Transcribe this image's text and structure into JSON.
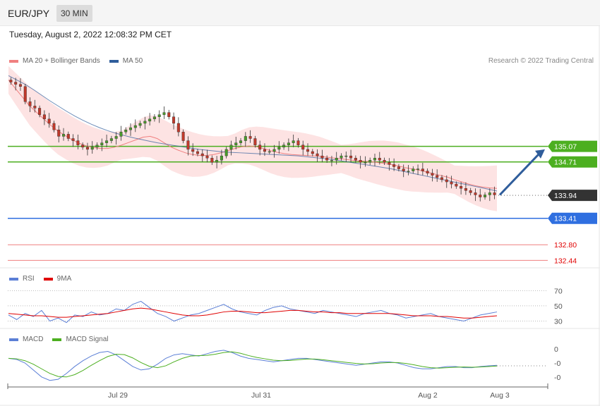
{
  "header": {
    "pair": "EUR/JPY",
    "timeframe": "30 MIN"
  },
  "datetime": "Tuesday, August 2, 2022 12:08:32 PM CET",
  "credit": "Research © 2022 Trading Central",
  "legends": {
    "price": [
      {
        "label": "MA 20 + Bollinger Bands",
        "color": "#f08080"
      },
      {
        "label": "MA 50",
        "color": "#2f5d9b"
      }
    ],
    "rsi": [
      {
        "label": "RSI",
        "color": "#5b7fd6"
      },
      {
        "label": "9MA",
        "color": "#e00000"
      }
    ],
    "macd": [
      {
        "label": "MACD",
        "color": "#5b7fd6"
      },
      {
        "label": "MACD Signal",
        "color": "#4caf20"
      }
    ]
  },
  "colors": {
    "up": "#4a9a2a",
    "down": "#c0392b",
    "resistance": "#4caf20",
    "support": "#2f6fe0",
    "support2": "#e00000",
    "current": "#333333",
    "arrow": "#2f5d9b"
  },
  "chart_data": [
    {
      "type": "candlestick",
      "name": "price",
      "ylim": [
        132.3,
        136.9
      ],
      "x_ticks": [
        "Jul 29",
        "Jul 31",
        "Aug 2",
        "Aug 3"
      ],
      "levels": [
        {
          "label": "135.07",
          "value": 135.07,
          "kind": "resistance"
        },
        {
          "label": "134.71",
          "value": 134.71,
          "kind": "resistance"
        },
        {
          "label": "133.94",
          "value": 133.94,
          "kind": "current"
        },
        {
          "label": "133.41",
          "value": 133.41,
          "kind": "support"
        },
        {
          "label": "132.80",
          "value": 132.8,
          "kind": "support2"
        },
        {
          "label": "132.44",
          "value": 132.44,
          "kind": "support2"
        }
      ],
      "close": [
        136.55,
        136.5,
        136.45,
        136.1,
        136.0,
        135.95,
        135.8,
        135.7,
        135.6,
        135.45,
        135.3,
        135.35,
        135.25,
        135.2,
        135.1,
        135.05,
        135.0,
        135.05,
        135.1,
        135.15,
        135.2,
        135.25,
        135.3,
        135.4,
        135.45,
        135.5,
        135.55,
        135.6,
        135.65,
        135.7,
        135.75,
        135.8,
        135.85,
        135.75,
        135.6,
        135.4,
        135.2,
        135.0,
        134.95,
        134.9,
        134.85,
        134.8,
        134.7,
        134.75,
        134.85,
        135.0,
        135.1,
        135.15,
        135.2,
        135.3,
        135.25,
        135.1,
        135.0,
        134.95,
        134.95,
        135.0,
        135.05,
        135.1,
        135.15,
        135.2,
        135.1,
        135.0,
        134.95,
        134.9,
        134.85,
        134.8,
        134.75,
        134.75,
        134.8,
        134.85,
        134.85,
        134.8,
        134.75,
        134.7,
        134.7,
        134.75,
        134.8,
        134.75,
        134.7,
        134.65,
        134.6,
        134.55,
        134.5,
        134.5,
        134.55,
        134.55,
        134.5,
        134.45,
        134.4,
        134.35,
        134.3,
        134.25,
        134.2,
        134.15,
        134.1,
        134.05,
        134.0,
        133.95,
        133.9,
        133.95,
        134.0,
        133.95
      ],
      "ma20": [
        136.6,
        136.4,
        136.2,
        136.0,
        135.85,
        135.7,
        135.55,
        135.42,
        135.32,
        135.22,
        135.14,
        135.08,
        135.04,
        135.02,
        135.02,
        135.05,
        135.1,
        135.16,
        135.22,
        135.28,
        135.3,
        135.25,
        135.15,
        135.05,
        134.98,
        134.92,
        134.88,
        134.86,
        134.86,
        134.88,
        134.92,
        134.97,
        135.02,
        135.06,
        135.08,
        135.06,
        135.02,
        134.97,
        134.93,
        134.9,
        134.88,
        134.87,
        134.86,
        134.85,
        134.84,
        134.82,
        134.8,
        134.78,
        134.76,
        134.74,
        134.73,
        134.72,
        134.7,
        134.68,
        134.65,
        134.62,
        134.58,
        134.55,
        134.52,
        134.48,
        134.44,
        134.4,
        134.36,
        134.3,
        134.25,
        134.2,
        134.16,
        134.13,
        134.11,
        134.1
      ],
      "ma50": [
        136.7,
        136.6,
        136.5,
        136.38,
        136.25,
        136.12,
        136.0,
        135.88,
        135.77,
        135.67,
        135.58,
        135.5,
        135.43,
        135.37,
        135.32,
        135.27,
        135.23,
        135.19,
        135.15,
        135.12,
        135.09,
        135.06,
        135.03,
        135.0,
        134.98,
        134.96,
        134.94,
        134.93,
        134.92,
        134.91,
        134.9,
        134.89,
        134.88,
        134.87,
        134.86,
        134.85,
        134.83,
        134.81,
        134.79,
        134.77,
        134.74,
        134.71,
        134.68,
        134.65,
        134.62,
        134.59,
        134.56,
        134.52,
        134.48,
        134.44,
        134.4,
        134.36,
        134.32,
        134.28,
        134.24,
        134.2,
        134.16,
        134.12,
        134.08,
        134.04
      ]
    },
    {
      "type": "line",
      "name": "RSI",
      "ylim": [
        24,
        74
      ],
      "y_ticks": [
        "70",
        "50",
        "30"
      ],
      "series": [
        {
          "name": "RSI",
          "values": [
            38,
            32,
            40,
            36,
            44,
            30,
            34,
            28,
            38,
            36,
            42,
            38,
            40,
            46,
            44,
            52,
            56,
            48,
            40,
            36,
            30,
            34,
            38,
            40,
            44,
            48,
            52,
            46,
            42,
            40,
            38,
            44,
            48,
            50,
            46,
            44,
            42,
            40,
            44,
            42,
            40,
            38,
            36,
            40,
            42,
            44,
            40,
            38,
            34,
            36,
            38,
            40,
            36,
            34,
            32,
            30,
            34,
            38,
            40,
            42
          ]
        },
        {
          "name": "9MA",
          "values": [
            40,
            39,
            38,
            37,
            37,
            36,
            35,
            35,
            36,
            37,
            38,
            39,
            40,
            42,
            44,
            46,
            47,
            46,
            44,
            42,
            40,
            38,
            37,
            37,
            38,
            40,
            42,
            43,
            43,
            42,
            41,
            41,
            42,
            43,
            44,
            44,
            43,
            42,
            42,
            41,
            41,
            40,
            40,
            40,
            40,
            40,
            40,
            39,
            38,
            37,
            37,
            37,
            36,
            36,
            35,
            34,
            34,
            35,
            36,
            37
          ]
        }
      ]
    },
    {
      "type": "line",
      "name": "MACD",
      "ylim": [
        -1,
        1
      ],
      "y_ticks": [
        "0",
        "-0",
        "-0"
      ],
      "series": [
        {
          "name": "MACD",
          "values": [
            0.2,
            0.15,
            0.0,
            -0.3,
            -0.6,
            -0.75,
            -0.7,
            -0.45,
            -0.15,
            0.1,
            0.3,
            0.45,
            0.5,
            0.35,
            0.1,
            -0.15,
            -0.3,
            -0.25,
            -0.05,
            0.2,
            0.35,
            0.4,
            0.35,
            0.3,
            0.4,
            0.5,
            0.55,
            0.45,
            0.3,
            0.2,
            0.15,
            0.1,
            0.05,
            0.1,
            0.15,
            0.2,
            0.2,
            0.15,
            0.1,
            0.05,
            0.0,
            -0.05,
            -0.1,
            -0.05,
            0.0,
            0.05,
            0.05,
            0.0,
            -0.1,
            -0.2,
            -0.25,
            -0.25,
            -0.2,
            -0.15,
            -0.15,
            -0.2,
            -0.2,
            -0.15,
            -0.12,
            -0.1
          ]
        },
        {
          "name": "MACD Signal",
          "values": [
            0.2,
            0.18,
            0.1,
            -0.05,
            -0.25,
            -0.45,
            -0.58,
            -0.6,
            -0.5,
            -0.32,
            -0.1,
            0.1,
            0.28,
            0.38,
            0.36,
            0.22,
            0.02,
            -0.14,
            -0.2,
            -0.12,
            0.05,
            0.2,
            0.3,
            0.32,
            0.33,
            0.38,
            0.45,
            0.48,
            0.42,
            0.32,
            0.24,
            0.18,
            0.12,
            0.1,
            0.11,
            0.14,
            0.17,
            0.17,
            0.14,
            0.1,
            0.06,
            0.02,
            -0.02,
            -0.04,
            -0.03,
            0.0,
            0.02,
            0.02,
            -0.02,
            -0.08,
            -0.15,
            -0.2,
            -0.22,
            -0.2,
            -0.18,
            -0.17,
            -0.18,
            -0.17,
            -0.15,
            -0.13
          ]
        }
      ]
    }
  ]
}
